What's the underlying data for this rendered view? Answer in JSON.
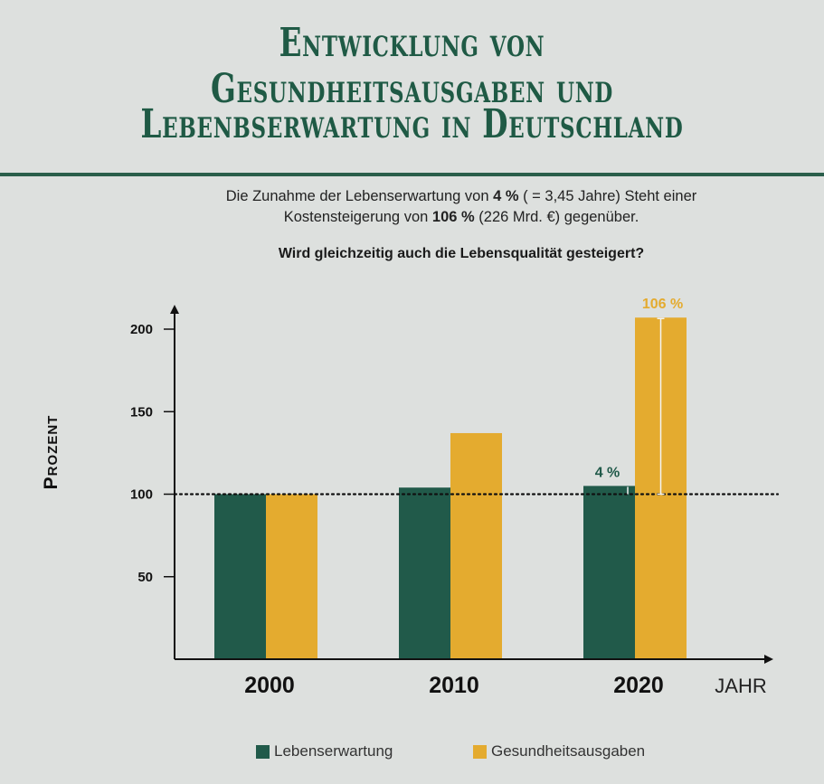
{
  "header": {
    "title_line1": "Entwicklung von Gesundheitsausgaben und",
    "title_line2": "Lebenbserwartung in Deutschland"
  },
  "subtitle": {
    "line1_a": "Die Zunahme der Lebenserwartung von ",
    "line1_b": "4 %",
    "line1_c": " ( = 3,45 Jahre) Steht einer",
    "line2_a": "Kostensteigerung von ",
    "line2_b": "106 %",
    "line2_c": " (226 Mrd. €) gegenüber."
  },
  "question": "Wird gleichzeitig auch die Lebensqualität gesteigert?",
  "colors": {
    "green": "#215a4a",
    "gold": "#e4ab2f",
    "axis": "#111111"
  },
  "chart_data": {
    "type": "bar",
    "categories": [
      "2000",
      "2010",
      "2020"
    ],
    "series": [
      {
        "name": "Lebenserwartung",
        "values": [
          100,
          104,
          105
        ],
        "color": "#215a4a"
      },
      {
        "name": "Gesundheitsausgaben",
        "values": [
          100,
          137,
          207
        ],
        "color": "#e4ab2f"
      }
    ],
    "ylabel": "Prozent",
    "xlabel": "JAHR",
    "yticks": [
      50,
      100,
      150,
      200
    ],
    "ylim": [
      0,
      210
    ],
    "reference_line": 100,
    "annotations": [
      {
        "category": "2020",
        "series": "Lebenserwartung",
        "text": "4 %"
      },
      {
        "category": "2020",
        "series": "Gesundheitsausgaben",
        "text": "106 %"
      }
    ],
    "legend_position": "bottom"
  }
}
